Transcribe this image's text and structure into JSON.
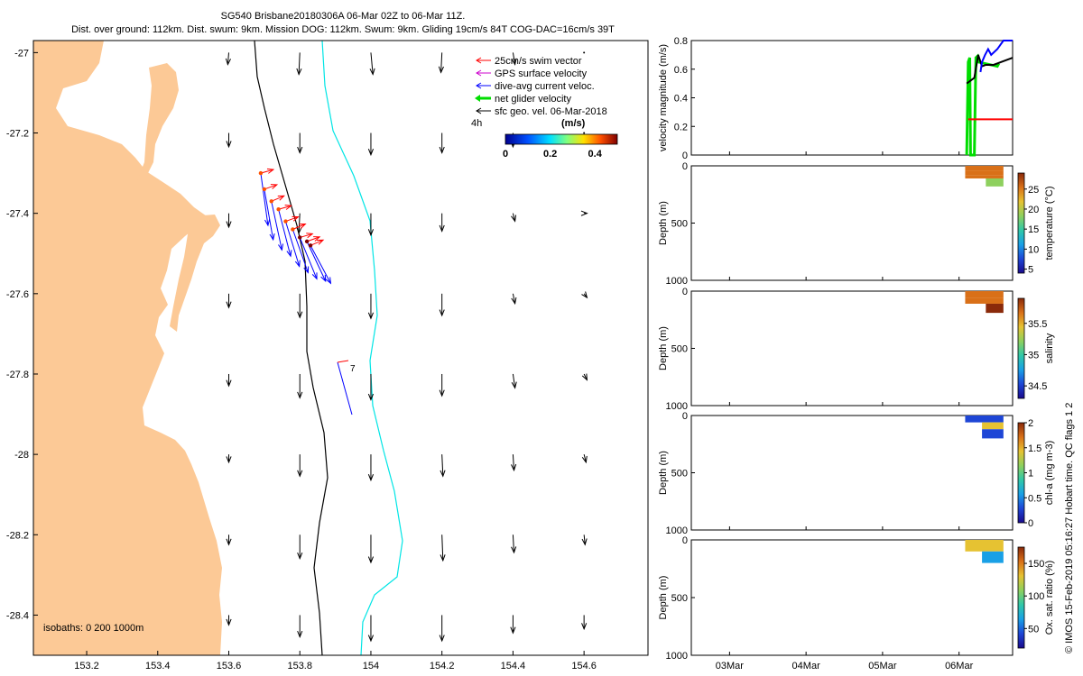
{
  "title_line1": "SG540 Brisbane20180306A 06-Mar 02Z to 06-Mar 11Z.",
  "title_line2": "Dist. over ground: 112km. Dist. swum: 9km. Mission DOG: 112km. Swum: 9km. Gliding 19cm/s 84T COG-DAC=16cm/s 39T",
  "vertical_credit": "© IMOS 15-Feb-2019 05:16:27 Hobart time. QC flags 1  2",
  "colors": {
    "land": "#fcc996",
    "swim": "#ff0000",
    "gps": "#cc00cc",
    "dac": "#0000ff",
    "net": "#00dd00",
    "geo": "#000000",
    "isobath_200": "#000000",
    "isobath_1000": "#00e5e5"
  },
  "chart_data": [
    {
      "type": "map",
      "xlim": [
        153.05,
        154.78
      ],
      "ylim": [
        -28.5,
        -26.97
      ],
      "xticks": [
        "153.2",
        "153.4",
        "153.6",
        "153.8",
        "154",
        "154.2",
        "154.4",
        "154.6"
      ],
      "yticks": [
        "-27",
        "-27.2",
        "-27.4",
        "-27.6",
        "-27.8",
        "-28",
        "-28.2",
        "-28.4"
      ],
      "legend": {
        "placement": "top-right",
        "entries": [
          {
            "label": "25cm/s swim vector",
            "color": "#ff0000"
          },
          {
            "label": "GPS surface velocity",
            "color": "#cc00cc"
          },
          {
            "label": "dive-avg current veloc.",
            "color": "#0000ff"
          },
          {
            "label": "net glider velocity",
            "color": "#00dd00"
          },
          {
            "label": "sfc geo. vel. 06-Mar-2018",
            "color": "#000000"
          }
        ],
        "scale_label": "4h"
      },
      "colorbar": {
        "label": "(m/s)",
        "ticks": [
          "0",
          "0.2",
          "0.4"
        ],
        "range": [
          0,
          0.5
        ]
      },
      "isobath_label": "isobaths: 0   200   1000m",
      "end_label": "7",
      "geo_velocity_field": {
        "lons": [
          153.6,
          153.8,
          154.0,
          154.2,
          154.4,
          154.6
        ],
        "lats": [
          -27.0,
          -27.2,
          -27.4,
          -27.6,
          -27.8,
          -28.0,
          -28.2,
          -28.4
        ],
        "u": [
          [
            -0.01,
            -0.01,
            0.02,
            -0.01,
            0.02,
            0.0
          ],
          [
            0.0,
            0.0,
            0.0,
            0.0,
            0.0,
            0.0
          ],
          [
            0.0,
            -0.01,
            0.0,
            0.0,
            0.02,
            0.03
          ],
          [
            0.0,
            0.0,
            0.0,
            0.0,
            0.02,
            0.03
          ],
          [
            0.0,
            0.0,
            0.0,
            0.0,
            0.02,
            0.03
          ],
          [
            0.0,
            0.0,
            0.0,
            0.01,
            0.01,
            0.02
          ],
          [
            0.0,
            0.0,
            0.0,
            0.01,
            0.01,
            0.01
          ],
          [
            0.0,
            0.0,
            0.0,
            0.0,
            0.0,
            0.0
          ]
        ],
        "v": [
          [
            -0.12,
            -0.22,
            -0.22,
            -0.2,
            -0.12,
            0.0
          ],
          [
            -0.14,
            -0.2,
            -0.22,
            -0.2,
            -0.14,
            0.0
          ],
          [
            -0.14,
            -0.2,
            -0.22,
            -0.18,
            -0.08,
            0.0
          ],
          [
            -0.14,
            -0.24,
            -0.25,
            -0.22,
            -0.1,
            -0.04
          ],
          [
            -0.12,
            -0.24,
            -0.26,
            -0.22,
            -0.14,
            -0.06
          ],
          [
            -0.08,
            -0.22,
            -0.26,
            -0.22,
            -0.16,
            -0.08
          ],
          [
            -0.1,
            -0.24,
            -0.28,
            -0.26,
            -0.18,
            -0.1
          ],
          [
            -0.1,
            -0.22,
            -0.26,
            -0.26,
            -0.18,
            -0.14
          ]
        ]
      },
      "track": {
        "lon": [
          153.69,
          153.7,
          153.72,
          153.74,
          153.76,
          153.78,
          153.8,
          153.82,
          153.83
        ],
        "lat": [
          -27.3,
          -27.34,
          -27.37,
          -27.39,
          -27.42,
          -27.44,
          -27.46,
          -27.47,
          -27.48
        ]
      }
    },
    {
      "type": "line",
      "ylabel": "velocity magnitude (m/s)",
      "ylim": [
        0,
        0.8
      ],
      "yticks": [
        "0",
        "0.2",
        "0.4",
        "0.6",
        "0.8"
      ],
      "xlim_days": [
        2.5,
        6.7
      ],
      "series": [
        {
          "color": "#00dd00",
          "x": [
            6.1,
            6.12,
            6.14,
            6.15,
            6.2,
            6.22,
            6.24,
            6.25,
            6.5,
            6.52
          ],
          "y": [
            0.0,
            0.65,
            0.68,
            0.0,
            0.0,
            0.68,
            0.69,
            0.65,
            0.62,
            0.64
          ]
        },
        {
          "color": "#ff0000",
          "x": [
            6.12,
            6.2,
            6.3,
            6.45,
            6.7
          ],
          "y": [
            0.25,
            0.25,
            0.25,
            0.25,
            0.25
          ]
        },
        {
          "color": "#000000",
          "x": [
            6.1,
            6.2,
            6.25,
            6.3,
            6.35,
            6.45,
            6.55,
            6.7
          ],
          "y": [
            0.5,
            0.54,
            0.7,
            0.62,
            0.63,
            0.63,
            0.65,
            0.68
          ]
        },
        {
          "color": "#0000ff",
          "x": [
            6.28,
            6.3,
            6.34,
            6.36,
            6.38,
            6.42,
            6.5,
            6.58,
            6.7
          ],
          "y": [
            0.58,
            0.65,
            0.7,
            0.72,
            0.74,
            0.7,
            0.74,
            0.8,
            0.8
          ]
        }
      ]
    },
    {
      "type": "scatter",
      "ylabel": "Depth (m)",
      "ylim": [
        1000,
        0
      ],
      "yticks": [
        "0",
        "500",
        "1000"
      ],
      "colorbar_label": "temperature (°C)",
      "colorbar_ticks": [
        "5",
        "10",
        "15",
        "20",
        "25"
      ],
      "crange": [
        4,
        29
      ],
      "cells": [
        {
          "x0": 6.08,
          "x1": 6.58,
          "d0": 0,
          "d1": 40,
          "value": 27
        },
        {
          "x0": 6.08,
          "x1": 6.58,
          "d0": 40,
          "d1": 80,
          "value": 26
        },
        {
          "x0": 6.08,
          "x1": 6.58,
          "d0": 80,
          "d1": 110,
          "value": 24
        },
        {
          "x0": 6.35,
          "x1": 6.58,
          "d0": 110,
          "d1": 180,
          "value": 18
        }
      ]
    },
    {
      "type": "scatter",
      "ylabel": "Depth (m)",
      "ylim": [
        1000,
        0
      ],
      "yticks": [
        "0",
        "500",
        "1000"
      ],
      "colorbar_label": "salinity",
      "colorbar_ticks": [
        "34.5",
        "35",
        "35.5"
      ],
      "crange": [
        34.3,
        35.9
      ],
      "cells": [
        {
          "x0": 6.08,
          "x1": 6.58,
          "d0": 0,
          "d1": 60,
          "value": 35.6
        },
        {
          "x0": 6.08,
          "x1": 6.58,
          "d0": 60,
          "d1": 110,
          "value": 35.7
        },
        {
          "x0": 6.35,
          "x1": 6.58,
          "d0": 110,
          "d1": 190,
          "value": 35.8
        }
      ]
    },
    {
      "type": "scatter",
      "ylabel": "Depth (m)",
      "ylim": [
        1000,
        0
      ],
      "yticks": [
        "0",
        "500",
        "1000"
      ],
      "colorbar_label": "chl-a (mg m-3)",
      "colorbar_ticks": [
        "0",
        "0.5",
        "1",
        "1.5",
        "2"
      ],
      "crange": [
        0,
        2
      ],
      "cells": [
        {
          "x0": 6.08,
          "x1": 6.58,
          "d0": 0,
          "d1": 60,
          "value": 0.2
        },
        {
          "x0": 6.3,
          "x1": 6.58,
          "d0": 60,
          "d1": 120,
          "value": 1.3
        },
        {
          "x0": 6.3,
          "x1": 6.58,
          "d0": 120,
          "d1": 200,
          "value": 0.4
        }
      ]
    },
    {
      "type": "scatter",
      "ylabel": "Depth (m)",
      "ylim": [
        1000,
        0
      ],
      "yticks": [
        "0",
        "500",
        "1000"
      ],
      "colorbar_label": "Ox. sat. ratio (%)",
      "colorbar_ticks": [
        "50",
        "100",
        "150"
      ],
      "crange": [
        20,
        175
      ],
      "xticks": [
        "03Mar",
        "04Mar",
        "05Mar",
        "06Mar"
      ],
      "cells": [
        {
          "x0": 6.08,
          "x1": 6.58,
          "d0": 0,
          "d1": 100,
          "value": 120
        },
        {
          "x0": 6.3,
          "x1": 6.58,
          "d0": 100,
          "d1": 200,
          "value": 70
        }
      ]
    }
  ]
}
